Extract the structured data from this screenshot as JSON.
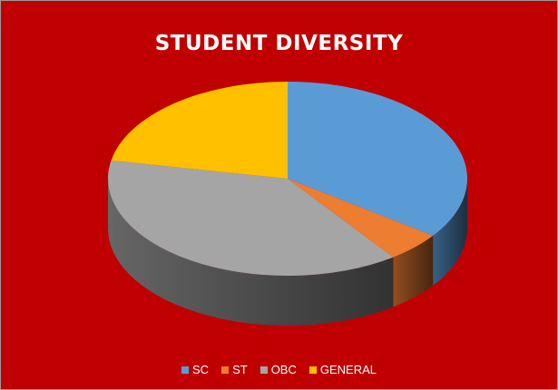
{
  "chart_data": {
    "type": "pie",
    "title": "STUDENT DIVERSITY",
    "legend_position": "bottom",
    "background": "#C00000",
    "series": [
      {
        "name": "SC",
        "value": 35,
        "color": "#5B9BD5"
      },
      {
        "name": "ST",
        "value": 5,
        "color": "#ED7D31"
      },
      {
        "name": "OBC",
        "value": 38,
        "color": "#A5A5A5"
      },
      {
        "name": "GENERAL",
        "value": 22,
        "color": "#FFC000"
      }
    ]
  }
}
